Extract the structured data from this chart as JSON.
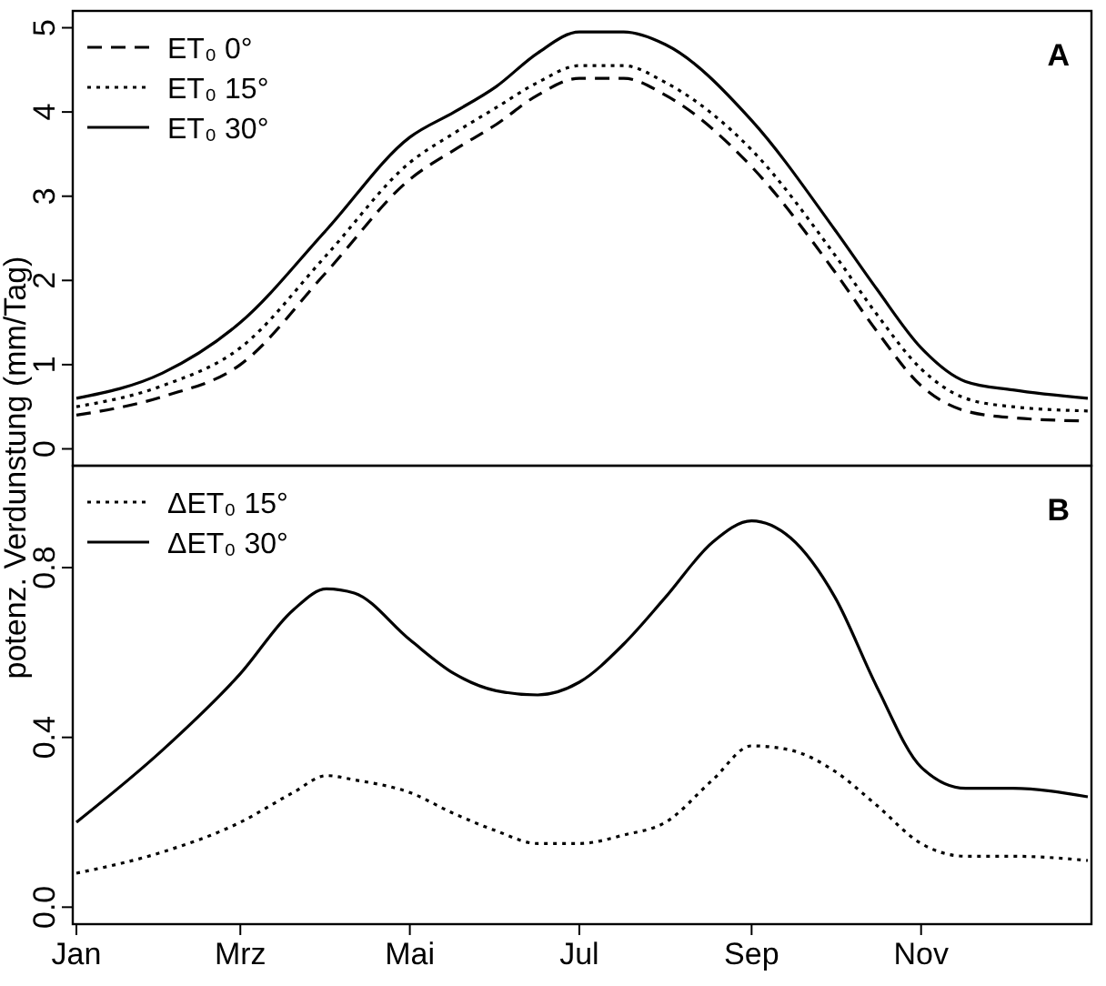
{
  "chart_data": [
    {
      "type": "line",
      "ylabel": "potenz. Verdunstung (mm/Tag)",
      "xlim": [
        "--01-01",
        "--12-31"
      ],
      "ylim": [
        -0.2,
        5.2
      ],
      "yticks": [
        0,
        1,
        2,
        3,
        4,
        5
      ],
      "tick_labels": "y",
      "legend": "top left",
      "annotations": [
        "A"
      ],
      "x": [
        "--01-01",
        "--02-01",
        "--03-01",
        "--04-01",
        "--05-01",
        "--05-17",
        "--06-01",
        "--06-16",
        "--07-01",
        "--07-17",
        "--08-01",
        "--09-01",
        "--10-01",
        "--10-16",
        "--11-01",
        "--11-17",
        "--12-04",
        "--12-31"
      ],
      "series": [
        {
          "name": "ET₀ 0°",
          "color": "#000000",
          "line_style": "dashed",
          "values": [
            0.4,
            0.62,
            1.0,
            2.1,
            3.2,
            3.55,
            3.85,
            4.2,
            4.4,
            4.4,
            4.2,
            3.35,
            2.1,
            1.4,
            0.75,
            0.45,
            0.37,
            0.33
          ]
        },
        {
          "name": "ET₀ 15°",
          "color": "#000000",
          "line_style": "dotted",
          "values": [
            0.5,
            0.75,
            1.2,
            2.3,
            3.4,
            3.75,
            4.05,
            4.35,
            4.55,
            4.55,
            4.35,
            3.55,
            2.3,
            1.6,
            0.95,
            0.6,
            0.5,
            0.45
          ]
        },
        {
          "name": "ET₀ 30°",
          "color": "#000000",
          "line_style": "solid",
          "values": [
            0.6,
            0.9,
            1.5,
            2.6,
            3.7,
            4.0,
            4.3,
            4.7,
            4.95,
            4.95,
            4.8,
            3.9,
            2.6,
            1.9,
            1.2,
            0.8,
            0.7,
            0.6
          ]
        }
      ]
    },
    {
      "type": "line",
      "xlim": [
        "--01-01",
        "--12-31"
      ],
      "xticks": [
        {
          "value": "--01-01",
          "label": "Jan"
        },
        {
          "value": "--03-01",
          "label": "Mrz"
        },
        {
          "value": "--05-01",
          "label": "Mai"
        },
        {
          "value": "--07-01",
          "label": "Jul"
        },
        {
          "value": "--09-01",
          "label": "Sep"
        },
        {
          "value": "--11-01",
          "label": "Nov"
        }
      ],
      "ylim": [
        -0.04,
        1.04
      ],
      "yticks": [
        {
          "value": 0,
          "label": "0.0"
        },
        0.4,
        0.8
      ],
      "legend": "top left",
      "annotations": [
        "B"
      ],
      "x": [
        "--01-01",
        "--02-01",
        "--03-01",
        "--03-20",
        "--04-01",
        "--04-11",
        "--05-01",
        "--05-17",
        "--06-01",
        "--06-16",
        "--07-01",
        "--07-17",
        "--08-01",
        "--08-18",
        "--09-01",
        "--09-15",
        "--10-01",
        "--10-16",
        "--11-01",
        "--11-17",
        "--12-04",
        "--12-31"
      ],
      "series": [
        {
          "name": "ΔET₀ 15°",
          "color": "#000000",
          "line_style": "dotted",
          "values": [
            0.08,
            0.13,
            0.2,
            0.27,
            0.31,
            0.3,
            0.27,
            0.22,
            0.18,
            0.15,
            0.15,
            0.17,
            0.2,
            0.3,
            0.38,
            0.37,
            0.32,
            0.24,
            0.15,
            0.12,
            0.12,
            0.11
          ]
        },
        {
          "name": "ΔET₀ 30°",
          "color": "#000000",
          "line_style": "solid",
          "values": [
            0.2,
            0.37,
            0.55,
            0.7,
            0.75,
            0.74,
            0.63,
            0.55,
            0.51,
            0.5,
            0.53,
            0.62,
            0.73,
            0.86,
            0.91,
            0.87,
            0.73,
            0.52,
            0.33,
            0.28,
            0.28,
            0.26
          ]
        }
      ]
    }
  ]
}
